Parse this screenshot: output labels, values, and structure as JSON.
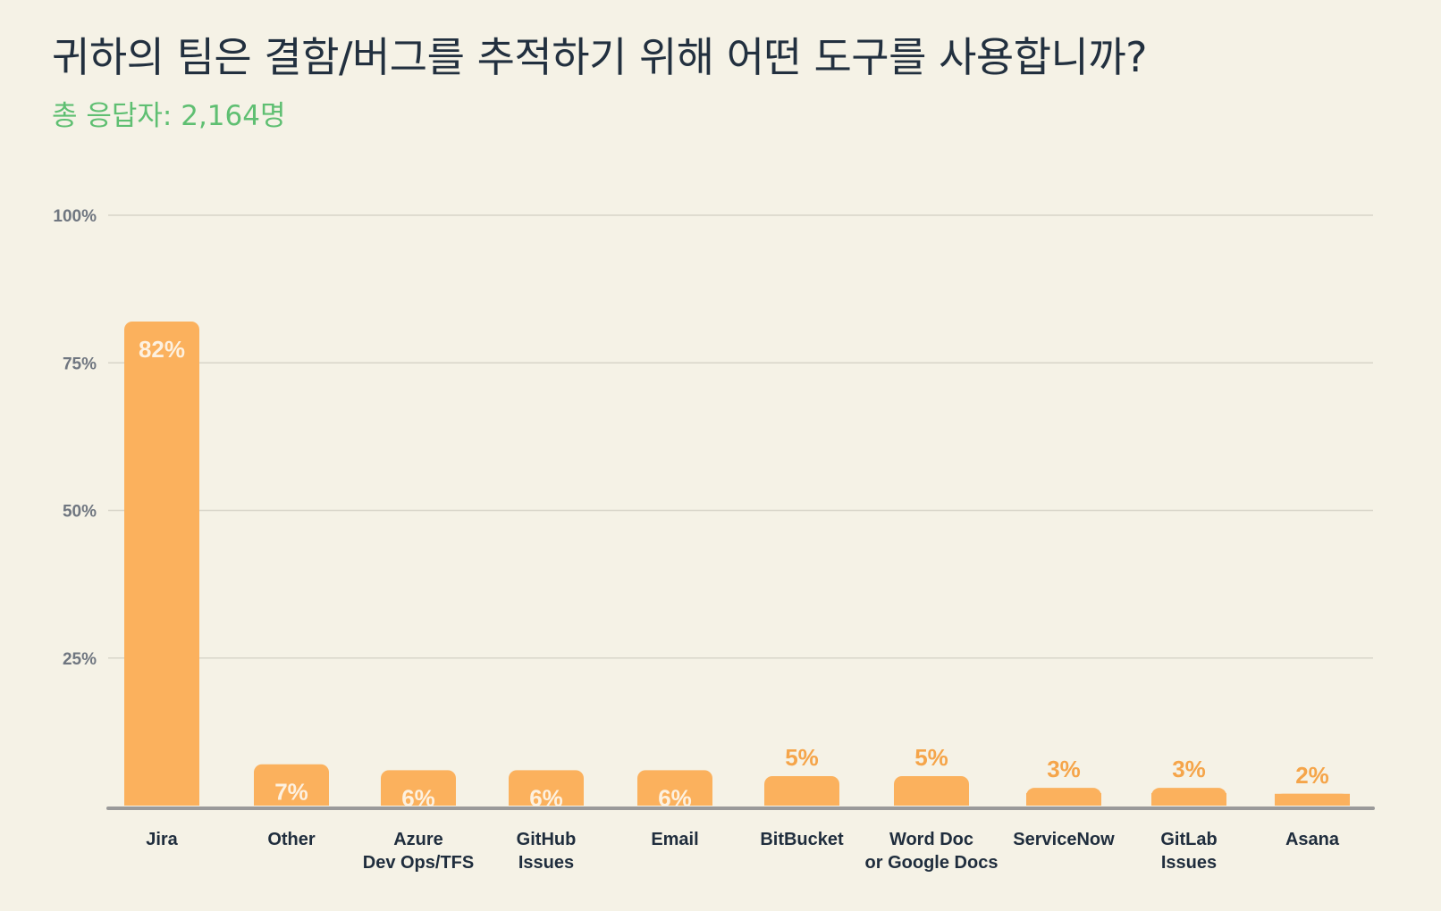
{
  "chart_data": {
    "type": "bar",
    "title": "귀하의 팀은 결함/버그를 추적하기 위해 어떤 도구를 사용합니까?",
    "subtitle": "총 응답자: 2,164명",
    "categories": [
      [
        "Jira"
      ],
      [
        "Other"
      ],
      [
        "Azure",
        "Dev Ops/TFS"
      ],
      [
        "GitHub",
        "Issues"
      ],
      [
        "Email"
      ],
      [
        "BitBucket"
      ],
      [
        "Word Doc",
        "or Google Docs"
      ],
      [
        "ServiceNow"
      ],
      [
        "GitLab",
        "Issues"
      ],
      [
        "Asana"
      ]
    ],
    "values": [
      82,
      7,
      6,
      6,
      6,
      5,
      5,
      3,
      3,
      2
    ],
    "value_labels": [
      "82%",
      "7%",
      "6%",
      "6%",
      "6%",
      "5%",
      "5%",
      "3%",
      "3%",
      "2%"
    ],
    "y_ticks": [
      25,
      50,
      75,
      100
    ],
    "y_tick_labels": [
      "25%",
      "50%",
      "75%",
      "100%"
    ],
    "ylim": [
      0,
      100
    ],
    "grid": true,
    "colors": {
      "bar": "#fbb15d",
      "label_inside": "#fdf1e0",
      "label_outside": "#f5a54a",
      "grid": "#d8d5c9",
      "axis": "#9a9a9a"
    }
  }
}
